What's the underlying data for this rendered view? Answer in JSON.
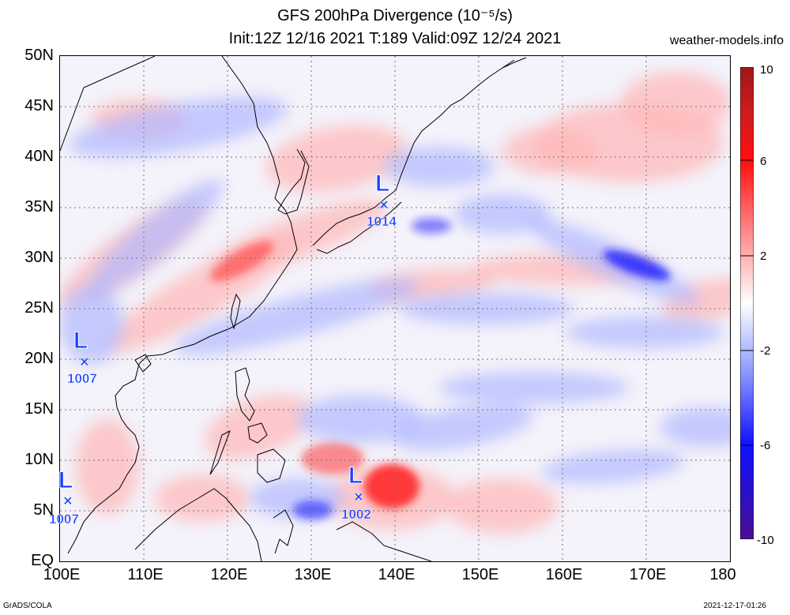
{
  "title": {
    "line1": "GFS 200hPa Divergence (10⁻⁵/s)",
    "line2": "Init:12Z 12/16 2021 T:189 Valid:09Z 12/24 2021"
  },
  "site": "weather-models.info",
  "axes": {
    "y_labels": [
      "50N",
      "45N",
      "40N",
      "35N",
      "30N",
      "25N",
      "20N",
      "15N",
      "10N",
      "5N",
      "EQ"
    ],
    "x_labels": [
      "100E",
      "110E",
      "120E",
      "130E",
      "140E",
      "150E",
      "160E",
      "170E",
      "180"
    ]
  },
  "colorbar": {
    "labels": [
      "10",
      "6",
      "2",
      "-2",
      "-6",
      "-10"
    ],
    "colors": {
      "max": "#b02020",
      "strong_pos": "#ff2020",
      "weak_pos": "#ffb6b6",
      "zero": "#ffffff",
      "weak_neg": "#b0b8ff",
      "strong_neg": "#1a1aff",
      "min": "#4010a0"
    }
  },
  "systems": [
    {
      "name": "low-japan",
      "symbol": "L",
      "marker": "×",
      "pressure": "1014"
    },
    {
      "name": "low-vietnam-north",
      "symbol": "L",
      "marker": "×",
      "pressure": "1007"
    },
    {
      "name": "low-malay",
      "symbol": "L",
      "marker": "×",
      "pressure": "1007"
    },
    {
      "name": "low-pacific",
      "symbol": "L",
      "marker": "×",
      "pressure": "1002"
    }
  ],
  "footer": {
    "left": "GrADS/COLA",
    "right": "2021-12-17-01:26"
  }
}
